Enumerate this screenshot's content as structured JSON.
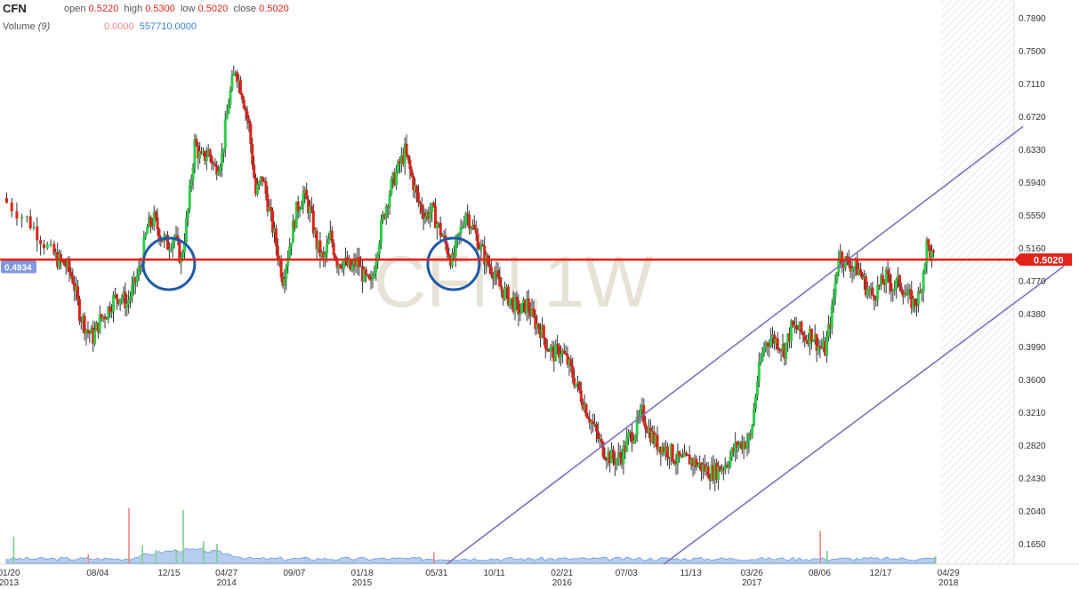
{
  "header": {
    "symbol": "CFN",
    "open_label": "open",
    "open_value": "0.5220",
    "high_label": "high",
    "high_value": "0.5300",
    "low_label": "low",
    "low_value": "0.5020",
    "close_label": "close",
    "close_value": "0.5020",
    "volume_label": "Volume",
    "volume_period": "(9)",
    "volume_value_1": "0.0000",
    "volume_value_2": "557710.0000"
  },
  "watermark": "CFN,1W",
  "colors": {
    "up": "#2fcc4a",
    "down": "#e32219",
    "support_line": "#e32219",
    "channel": "#8070bf",
    "circle": "#1f5aa8",
    "volume_area": "#a9c6ee",
    "left_marker": "#7f98e0"
  },
  "chart_data": {
    "type": "candlestick",
    "ylim": [
      0.13,
      0.805
    ],
    "y_ticks": [
      "0.7890",
      "0.7500",
      "0.7110",
      "0.6720",
      "0.6330",
      "0.5940",
      "0.5550",
      "0.5160",
      "0.4770",
      "0.4380",
      "0.3990",
      "0.3600",
      "0.3210",
      "0.2820",
      "0.2430",
      "0.2040",
      "0.1650"
    ],
    "x_ticks": [
      {
        "label": "01/20",
        "year": "2013"
      },
      {
        "label": "08/04",
        "year": ""
      },
      {
        "label": "12/15",
        "year": ""
      },
      {
        "label": "04/27",
        "year": "2014"
      },
      {
        "label": "09/07",
        "year": ""
      },
      {
        "label": "01/18",
        "year": "2015"
      },
      {
        "label": "05/31",
        "year": ""
      },
      {
        "label": "10/11",
        "year": ""
      },
      {
        "label": "02/21",
        "year": "2016"
      },
      {
        "label": "07/03",
        "year": ""
      },
      {
        "label": "11/13",
        "year": ""
      },
      {
        "label": "03/26",
        "year": "2017"
      },
      {
        "label": "08/06",
        "year": ""
      },
      {
        "label": "12/17",
        "year": ""
      },
      {
        "label": "04/29",
        "year": "2018"
      }
    ],
    "last_price": "0.5020",
    "left_marker": "0.4934",
    "horizontal_line": 0.502,
    "channel_lines": [
      {
        "from": [
          65,
          0.13
        ],
        "to": [
          150,
          0.66
        ]
      },
      {
        "from": [
          97,
          0.13
        ],
        "to": [
          156,
          0.494
        ]
      }
    ],
    "circles": [
      {
        "x": 24,
        "y": 0.497
      },
      {
        "x": 66,
        "y": 0.497
      }
    ],
    "price_path": [
      [
        0,
        0.575
      ],
      [
        3,
        0.555
      ],
      [
        5,
        0.535
      ],
      [
        7,
        0.51
      ],
      [
        8,
        0.5
      ],
      [
        9,
        0.495
      ],
      [
        10,
        0.48
      ],
      [
        11,
        0.44
      ],
      [
        12,
        0.42
      ],
      [
        13,
        0.41
      ],
      [
        14,
        0.43
      ],
      [
        15,
        0.44
      ],
      [
        16,
        0.455
      ],
      [
        17,
        0.46
      ],
      [
        18,
        0.45
      ],
      [
        19,
        0.47
      ],
      [
        20,
        0.495
      ],
      [
        21,
        0.54
      ],
      [
        22,
        0.55
      ],
      [
        23,
        0.53
      ],
      [
        24,
        0.52
      ],
      [
        25,
        0.53
      ],
      [
        26,
        0.5
      ],
      [
        27,
        0.56
      ],
      [
        28,
        0.64
      ],
      [
        29,
        0.62
      ],
      [
        30,
        0.63
      ],
      [
        31,
        0.61
      ],
      [
        32,
        0.625
      ],
      [
        33,
        0.69
      ],
      [
        34,
        0.73
      ],
      [
        35,
        0.7
      ],
      [
        36,
        0.66
      ],
      [
        37,
        0.58
      ],
      [
        38,
        0.6
      ],
      [
        39,
        0.56
      ],
      [
        40,
        0.52
      ],
      [
        41,
        0.48
      ],
      [
        42,
        0.52
      ],
      [
        43,
        0.56
      ],
      [
        44,
        0.58
      ],
      [
        45,
        0.56
      ],
      [
        46,
        0.52
      ],
      [
        47,
        0.5
      ],
      [
        48,
        0.53
      ],
      [
        49,
        0.5
      ],
      [
        50,
        0.5
      ],
      [
        51,
        0.49
      ],
      [
        52,
        0.5
      ],
      [
        53,
        0.48
      ],
      [
        54,
        0.47
      ],
      [
        55,
        0.52
      ],
      [
        56,
        0.56
      ],
      [
        57,
        0.59
      ],
      [
        58,
        0.61
      ],
      [
        59,
        0.63
      ],
      [
        60,
        0.6
      ],
      [
        61,
        0.57
      ],
      [
        62,
        0.555
      ],
      [
        63,
        0.56
      ],
      [
        64,
        0.54
      ],
      [
        65,
        0.52
      ],
      [
        66,
        0.5
      ],
      [
        67,
        0.53
      ],
      [
        68,
        0.56
      ],
      [
        69,
        0.54
      ],
      [
        70,
        0.52
      ],
      [
        71,
        0.5
      ],
      [
        72,
        0.49
      ],
      [
        73,
        0.47
      ],
      [
        74,
        0.46
      ],
      [
        75,
        0.45
      ],
      [
        76,
        0.44
      ],
      [
        77,
        0.45
      ],
      [
        78,
        0.43
      ],
      [
        79,
        0.42
      ],
      [
        80,
        0.4
      ],
      [
        81,
        0.39
      ],
      [
        82,
        0.395
      ],
      [
        83,
        0.38
      ],
      [
        84,
        0.36
      ],
      [
        85,
        0.34
      ],
      [
        86,
        0.32
      ],
      [
        87,
        0.3
      ],
      [
        88,
        0.28
      ],
      [
        89,
        0.27
      ],
      [
        90,
        0.265
      ],
      [
        91,
        0.27
      ],
      [
        92,
        0.29
      ],
      [
        93,
        0.3
      ],
      [
        94,
        0.32
      ],
      [
        95,
        0.3
      ],
      [
        96,
        0.285
      ],
      [
        97,
        0.28
      ],
      [
        98,
        0.275
      ],
      [
        99,
        0.265
      ],
      [
        100,
        0.262
      ],
      [
        101,
        0.265
      ],
      [
        102,
        0.26
      ],
      [
        103,
        0.255
      ],
      [
        104,
        0.25
      ],
      [
        105,
        0.252
      ],
      [
        106,
        0.258
      ],
      [
        107,
        0.268
      ],
      [
        108,
        0.282
      ],
      [
        109,
        0.285
      ],
      [
        110,
        0.29
      ],
      [
        111,
        0.36
      ],
      [
        112,
        0.4
      ],
      [
        113,
        0.41
      ],
      [
        114,
        0.405
      ],
      [
        115,
        0.395
      ],
      [
        116,
        0.42
      ],
      [
        117,
        0.42
      ],
      [
        118,
        0.41
      ],
      [
        119,
        0.415
      ],
      [
        120,
        0.4
      ],
      [
        121,
        0.395
      ],
      [
        122,
        0.44
      ],
      [
        123,
        0.51
      ],
      [
        124,
        0.5
      ],
      [
        125,
        0.495
      ],
      [
        126,
        0.49
      ],
      [
        127,
        0.47
      ],
      [
        128,
        0.46
      ],
      [
        129,
        0.47
      ],
      [
        130,
        0.48
      ],
      [
        131,
        0.47
      ],
      [
        132,
        0.475
      ],
      [
        133,
        0.46
      ],
      [
        134,
        0.45
      ],
      [
        135,
        0.46
      ],
      [
        136,
        0.52
      ],
      [
        137,
        0.502
      ]
    ]
  }
}
